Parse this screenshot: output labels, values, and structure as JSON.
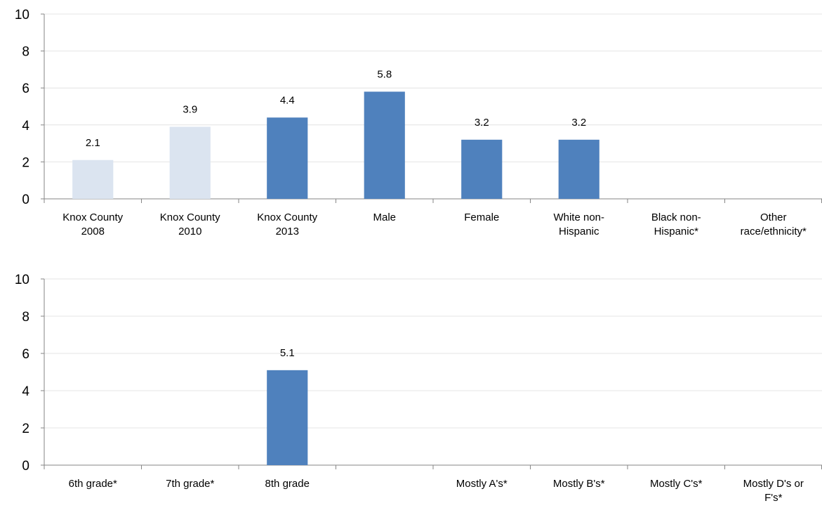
{
  "chart_data": [
    {
      "type": "bar",
      "categories": [
        [
          "Knox County",
          "2008"
        ],
        [
          "Knox County",
          "2010"
        ],
        [
          "Knox County",
          "2013"
        ],
        [
          "Male"
        ],
        [
          "Female"
        ],
        [
          "White non-",
          "Hispanic"
        ],
        [
          "Black non-",
          "Hispanic*"
        ],
        [
          "Other",
          "race/ethnicity*"
        ]
      ],
      "values": [
        2.1,
        3.9,
        4.4,
        5.8,
        3.2,
        3.2,
        null,
        null
      ],
      "data_labels": [
        "2.1",
        "3.9",
        "4.4",
        "5.8",
        "3.2",
        "3.2",
        "",
        ""
      ],
      "bar_colors": [
        "#dbe4f0",
        "#dbe4f0",
        "#4f81bd",
        "#4f81bd",
        "#4f81bd",
        "#4f81bd",
        "#4f81bd",
        "#4f81bd"
      ],
      "ylim": [
        0,
        10
      ],
      "yticks": [
        "0",
        "2",
        "4",
        "6",
        "8",
        "10"
      ],
      "grid": true,
      "legend": "none"
    },
    {
      "type": "bar",
      "categories": [
        [
          "6th grade*"
        ],
        [
          "7th grade*"
        ],
        [
          "8th grade"
        ],
        [
          ""
        ],
        [
          "Mostly A's*"
        ],
        [
          "Mostly B's*"
        ],
        [
          "Mostly C's*"
        ],
        [
          "Mostly D's or",
          "F's*"
        ]
      ],
      "values": [
        null,
        null,
        5.1,
        null,
        null,
        null,
        null,
        null
      ],
      "data_labels": [
        "",
        "",
        "5.1",
        "",
        "",
        "",
        "",
        ""
      ],
      "bar_colors": [
        "#4f81bd",
        "#4f81bd",
        "#4f81bd",
        "#4f81bd",
        "#4f81bd",
        "#4f81bd",
        "#4f81bd",
        "#4f81bd"
      ],
      "ylim": [
        0,
        10
      ],
      "yticks": [
        "0",
        "2",
        "4",
        "6",
        "8",
        "10"
      ],
      "grid": true,
      "legend": "none"
    }
  ],
  "colors": {
    "gridline": "#e4e4e4",
    "axis": "#868686",
    "text": "#000000"
  }
}
